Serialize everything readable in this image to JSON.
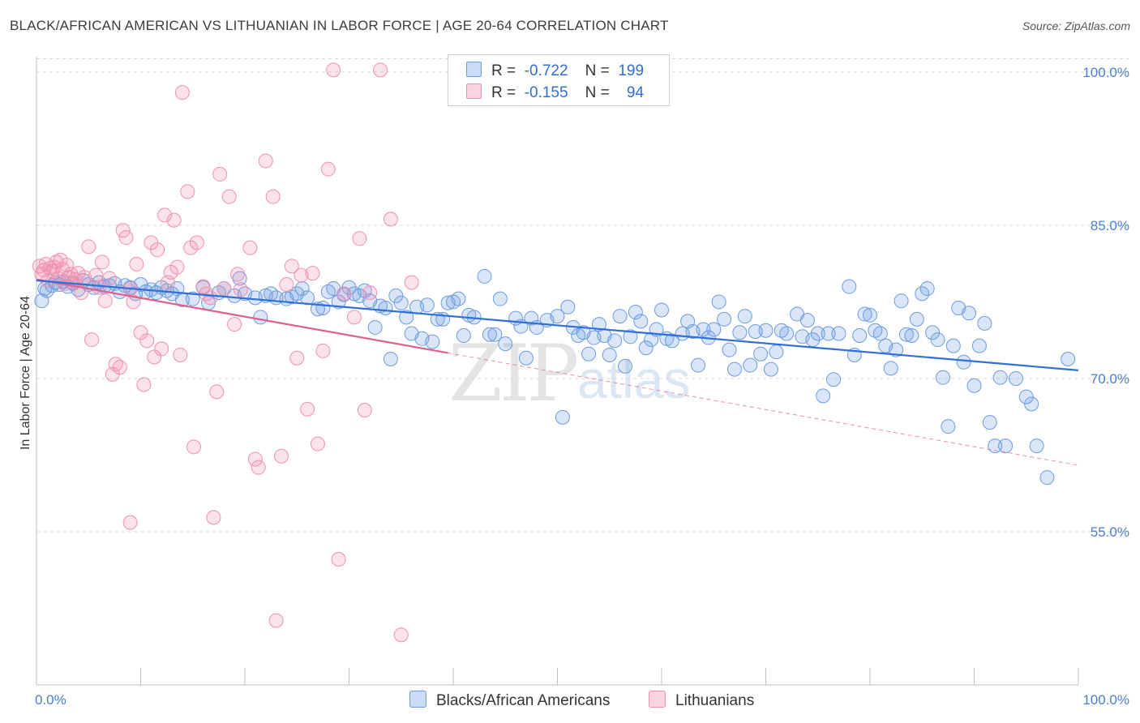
{
  "title": "BLACK/AFRICAN AMERICAN VS LITHUANIAN IN LABOR FORCE | AGE 20-64 CORRELATION CHART",
  "source": "Source: ZipAtlas.com",
  "watermark": {
    "zip": "ZIP",
    "atlas": "atlas"
  },
  "colors": {
    "blue": "#6c9be0",
    "blue_line": "#2f6fd6",
    "pink": "#f090b0",
    "pink_line": "#e0608c",
    "tick_text": "#4a7fd0"
  },
  "legend": {
    "rows": [
      {
        "r_label": "R =",
        "r_value": "-0.722",
        "n_label": "N =",
        "n_value": "199",
        "color": "#6c9be0"
      },
      {
        "r_label": "R =",
        "r_value": "-0.155",
        "n_label": "N =",
        "n_value": "94",
        "color": "#f090b0"
      }
    ]
  },
  "bottom_legend": [
    {
      "label": "Blacks/African Americans",
      "color": "#6c9be0"
    },
    {
      "label": "Lithuanians",
      "color": "#f090b0"
    }
  ],
  "chart_data": {
    "type": "scatter",
    "xlabel": "",
    "ylabel": "In Labor Force | Age 20-64",
    "xlim": [
      0,
      100
    ],
    "ylim": [
      40,
      101.5
    ],
    "x_tick_labels": [
      "0.0%",
      "100.0%"
    ],
    "y_ticks": [
      55,
      70,
      85,
      100
    ],
    "y_tick_labels": [
      "55.0%",
      "70.0%",
      "85.0%",
      "100.0%"
    ],
    "grid": true,
    "legend_position": "top-center",
    "series": [
      {
        "name": "Blacks/African Americans",
        "color": "#6c9be0",
        "trend": {
          "x": [
            0,
            100
          ],
          "y": [
            79.6,
            70.8
          ]
        },
        "points": [
          [
            0.5,
            77.6
          ],
          [
            0.8,
            78.8
          ],
          [
            1.0,
            78.6
          ],
          [
            1.5,
            79.1
          ],
          [
            1.8,
            79.4
          ],
          [
            2.2,
            79.2
          ],
          [
            2.6,
            79.5
          ],
          [
            3.0,
            79.0
          ],
          [
            3.5,
            79.3
          ],
          [
            4.0,
            78.7
          ],
          [
            4.5,
            79.6
          ],
          [
            5.0,
            79.2
          ],
          [
            5.5,
            78.9
          ],
          [
            6.0,
            79.4
          ],
          [
            6.5,
            79.0
          ],
          [
            7.0,
            79.1
          ],
          [
            7.5,
            79.3
          ],
          [
            8.0,
            78.5
          ],
          [
            8.5,
            79.1
          ],
          [
            9.0,
            78.9
          ],
          [
            9.5,
            78.3
          ],
          [
            10.0,
            79.2
          ],
          [
            10.5,
            78.5
          ],
          [
            11.0,
            78.7
          ],
          [
            11.5,
            78.4
          ],
          [
            12.0,
            78.9
          ],
          [
            12.5,
            78.6
          ],
          [
            13.0,
            78.3
          ],
          [
            13.5,
            78.8
          ],
          [
            14.0,
            77.7
          ],
          [
            15.0,
            77.8
          ],
          [
            16.0,
            78.9
          ],
          [
            16.5,
            77.4
          ],
          [
            17.5,
            78.4
          ],
          [
            18.0,
            78.8
          ],
          [
            19.0,
            78.1
          ],
          [
            19.5,
            79.8
          ],
          [
            20.0,
            78.3
          ],
          [
            21.0,
            77.9
          ],
          [
            21.5,
            76.0
          ],
          [
            22.0,
            78.1
          ],
          [
            22.5,
            78.3
          ],
          [
            23.0,
            77.9
          ],
          [
            24.0,
            77.8
          ],
          [
            24.5,
            78.0
          ],
          [
            25.0,
            78.3
          ],
          [
            25.5,
            78.8
          ],
          [
            26.0,
            77.9
          ],
          [
            27.0,
            76.8
          ],
          [
            27.5,
            76.9
          ],
          [
            28.0,
            78.5
          ],
          [
            28.5,
            78.8
          ],
          [
            29.0,
            77.5
          ],
          [
            29.5,
            78.2
          ],
          [
            30.0,
            78.9
          ],
          [
            30.5,
            78.3
          ],
          [
            31.0,
            78.1
          ],
          [
            31.5,
            78.6
          ],
          [
            32.0,
            77.6
          ],
          [
            32.5,
            75.0
          ],
          [
            33.0,
            77.1
          ],
          [
            33.5,
            76.9
          ],
          [
            34.0,
            71.9
          ],
          [
            34.5,
            78.1
          ],
          [
            35.0,
            77.4
          ],
          [
            35.5,
            76.0
          ],
          [
            36.0,
            74.4
          ],
          [
            36.5,
            77.0
          ],
          [
            37.0,
            73.9
          ],
          [
            37.5,
            77.2
          ],
          [
            38.0,
            73.6
          ],
          [
            38.5,
            75.8
          ],
          [
            39.0,
            75.8
          ],
          [
            39.5,
            77.4
          ],
          [
            40.0,
            77.5
          ],
          [
            40.5,
            77.8
          ],
          [
            41.0,
            74.2
          ],
          [
            41.5,
            76.2
          ],
          [
            42.0,
            76.0
          ],
          [
            43.0,
            80.0
          ],
          [
            43.5,
            74.3
          ],
          [
            44.0,
            74.3
          ],
          [
            44.5,
            77.8
          ],
          [
            45.0,
            73.4
          ],
          [
            46.0,
            75.9
          ],
          [
            46.5,
            75.1
          ],
          [
            47.0,
            72.0
          ],
          [
            47.5,
            75.9
          ],
          [
            48.0,
            75.0
          ],
          [
            49.0,
            75.7
          ],
          [
            50.0,
            76.1
          ],
          [
            50.5,
            66.2
          ],
          [
            51.0,
            77.0
          ],
          [
            51.5,
            75.0
          ],
          [
            52.0,
            74.2
          ],
          [
            52.5,
            74.5
          ],
          [
            53.0,
            72.4
          ],
          [
            53.5,
            74.0
          ],
          [
            54.0,
            75.3
          ],
          [
            54.5,
            74.2
          ],
          [
            55.0,
            72.3
          ],
          [
            55.5,
            73.7
          ],
          [
            56.0,
            76.1
          ],
          [
            56.5,
            71.2
          ],
          [
            57.0,
            74.1
          ],
          [
            57.5,
            76.5
          ],
          [
            58.0,
            75.6
          ],
          [
            58.5,
            73.0
          ],
          [
            59.0,
            73.8
          ],
          [
            59.5,
            74.8
          ],
          [
            60.0,
            76.7
          ],
          [
            60.5,
            73.9
          ],
          [
            61.0,
            73.7
          ],
          [
            62.0,
            74.4
          ],
          [
            62.5,
            75.6
          ],
          [
            63.0,
            74.6
          ],
          [
            63.5,
            71.3
          ],
          [
            64.0,
            74.8
          ],
          [
            64.5,
            74.0
          ],
          [
            65.0,
            74.8
          ],
          [
            65.5,
            77.5
          ],
          [
            66.0,
            75.8
          ],
          [
            66.5,
            72.8
          ],
          [
            67.0,
            70.9
          ],
          [
            67.5,
            74.5
          ],
          [
            68.0,
            76.1
          ],
          [
            68.5,
            71.3
          ],
          [
            69.0,
            74.6
          ],
          [
            69.5,
            72.4
          ],
          [
            70.0,
            74.7
          ],
          [
            70.5,
            70.9
          ],
          [
            71.0,
            72.6
          ],
          [
            71.5,
            74.7
          ],
          [
            72.0,
            74.4
          ],
          [
            73.0,
            76.3
          ],
          [
            73.5,
            74.1
          ],
          [
            74.0,
            75.7
          ],
          [
            74.5,
            73.8
          ],
          [
            75.0,
            74.4
          ],
          [
            75.5,
            68.3
          ],
          [
            76.0,
            74.4
          ],
          [
            76.5,
            69.9
          ],
          [
            77.0,
            74.4
          ],
          [
            78.0,
            79.0
          ],
          [
            78.5,
            72.3
          ],
          [
            79.0,
            74.2
          ],
          [
            79.5,
            76.3
          ],
          [
            80.0,
            76.2
          ],
          [
            80.5,
            74.7
          ],
          [
            81.0,
            74.4
          ],
          [
            81.5,
            73.2
          ],
          [
            82.0,
            71.0
          ],
          [
            82.5,
            72.8
          ],
          [
            83.0,
            77.6
          ],
          [
            83.5,
            74.3
          ],
          [
            84.0,
            74.2
          ],
          [
            84.5,
            75.8
          ],
          [
            85.0,
            78.3
          ],
          [
            85.5,
            78.8
          ],
          [
            86.0,
            74.5
          ],
          [
            86.5,
            73.8
          ],
          [
            87.0,
            70.1
          ],
          [
            87.5,
            65.3
          ],
          [
            88.0,
            73.2
          ],
          [
            88.5,
            76.9
          ],
          [
            89.0,
            71.6
          ],
          [
            89.5,
            76.4
          ],
          [
            90.0,
            69.3
          ],
          [
            90.5,
            73.2
          ],
          [
            91.0,
            75.4
          ],
          [
            91.5,
            65.7
          ],
          [
            92.0,
            63.4
          ],
          [
            92.5,
            70.1
          ],
          [
            93.0,
            63.4
          ],
          [
            94.0,
            70.0
          ],
          [
            95.0,
            68.2
          ],
          [
            95.5,
            67.5
          ],
          [
            96.0,
            63.4
          ],
          [
            97.0,
            60.3
          ],
          [
            99.0,
            71.9
          ]
        ]
      },
      {
        "name": "Lithuanians",
        "color": "#f090b0",
        "trend": {
          "x": [
            0,
            39.5
          ],
          "y": [
            79.7,
            72.5
          ]
        },
        "trend_extension": {
          "x": [
            39.5,
            100
          ],
          "y": [
            72.5,
            61.5
          ]
        },
        "points": [
          [
            0.3,
            81.0
          ],
          [
            0.5,
            80.2
          ],
          [
            0.7,
            80.6
          ],
          [
            0.9,
            81.2
          ],
          [
            1.1,
            79.6
          ],
          [
            1.3,
            80.8
          ],
          [
            1.5,
            80.5
          ],
          [
            1.7,
            80.9
          ],
          [
            1.9,
            81.4
          ],
          [
            2.1,
            79.8
          ],
          [
            2.3,
            81.6
          ],
          [
            2.5,
            80.7
          ],
          [
            2.7,
            79.3
          ],
          [
            2.9,
            81.1
          ],
          [
            3.1,
            79.9
          ],
          [
            3.3,
            80.2
          ],
          [
            3.5,
            79.4
          ],
          [
            3.7,
            79.7
          ],
          [
            4.0,
            80.3
          ],
          [
            4.3,
            78.4
          ],
          [
            4.6,
            79.9
          ],
          [
            5.0,
            82.9
          ],
          [
            5.3,
            73.8
          ],
          [
            5.7,
            80.1
          ],
          [
            6.0,
            78.9
          ],
          [
            6.3,
            81.4
          ],
          [
            6.6,
            77.6
          ],
          [
            7.0,
            79.8
          ],
          [
            7.3,
            70.4
          ],
          [
            7.6,
            71.4
          ],
          [
            8.0,
            71.1
          ],
          [
            8.3,
            84.5
          ],
          [
            8.6,
            83.8
          ],
          [
            9.0,
            78.8
          ],
          [
            9.3,
            77.5
          ],
          [
            9.6,
            81.2
          ],
          [
            10.0,
            74.5
          ],
          [
            10.3,
            69.4
          ],
          [
            10.6,
            73.7
          ],
          [
            11.0,
            83.3
          ],
          [
            11.3,
            72.1
          ],
          [
            11.6,
            82.6
          ],
          [
            12.0,
            72.9
          ],
          [
            12.3,
            86.0
          ],
          [
            12.6,
            79.4
          ],
          [
            12.9,
            80.4
          ],
          [
            13.2,
            85.5
          ],
          [
            13.5,
            80.9
          ],
          [
            13.8,
            72.3
          ],
          [
            14.0,
            98.0
          ],
          [
            14.5,
            88.3
          ],
          [
            14.8,
            82.8
          ],
          [
            15.1,
            63.3
          ],
          [
            15.4,
            83.3
          ],
          [
            16.0,
            79.0
          ],
          [
            16.3,
            78.3
          ],
          [
            16.7,
            77.9
          ],
          [
            17.0,
            56.4
          ],
          [
            17.3,
            68.7
          ],
          [
            17.6,
            90.0
          ],
          [
            18.0,
            78.8
          ],
          [
            18.5,
            87.8
          ],
          [
            19.0,
            75.3
          ],
          [
            19.3,
            80.2
          ],
          [
            19.6,
            78.7
          ],
          [
            20.5,
            82.8
          ],
          [
            21.0,
            62.1
          ],
          [
            21.3,
            61.3
          ],
          [
            22.0,
            91.3
          ],
          [
            22.7,
            87.8
          ],
          [
            23.0,
            46.3
          ],
          [
            23.5,
            62.4
          ],
          [
            24.0,
            79.2
          ],
          [
            24.5,
            81.0
          ],
          [
            25.0,
            72.0
          ],
          [
            25.4,
            80.1
          ],
          [
            26.0,
            67.0
          ],
          [
            26.5,
            80.3
          ],
          [
            27.0,
            63.6
          ],
          [
            27.5,
            72.7
          ],
          [
            28.0,
            90.5
          ],
          [
            28.5,
            100.2
          ],
          [
            29.0,
            52.3
          ],
          [
            29.5,
            78.3
          ],
          [
            30.5,
            76.0
          ],
          [
            31.0,
            83.7
          ],
          [
            31.5,
            66.9
          ],
          [
            32.0,
            78.4
          ],
          [
            33.0,
            100.2
          ],
          [
            34.0,
            85.6
          ],
          [
            35.0,
            44.9
          ],
          [
            36.0,
            79.4
          ],
          [
            9.0,
            55.9
          ]
        ]
      }
    ]
  }
}
